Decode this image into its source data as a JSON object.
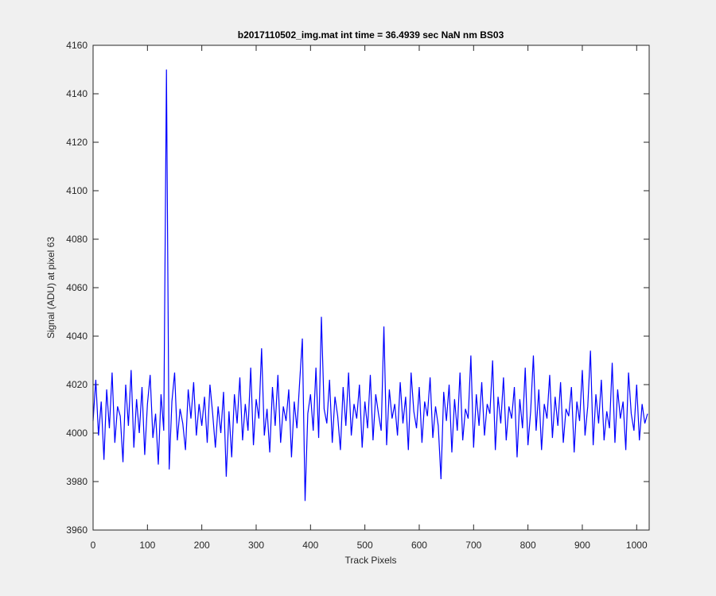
{
  "chart_data": {
    "type": "line",
    "title": "b2017110502_img.mat int time = 36.4939 sec  NaN nm BS03",
    "xlabel": "Track Pixels",
    "ylabel": "Signal (ADU) at pixel 63",
    "xlim": [
      0,
      1023
    ],
    "ylim": [
      3960,
      4160
    ],
    "xticks": [
      0,
      100,
      200,
      300,
      400,
      500,
      600,
      700,
      800,
      900,
      1000
    ],
    "yticks": [
      3960,
      3980,
      4000,
      4020,
      4040,
      4060,
      4080,
      4100,
      4120,
      4140,
      4160
    ],
    "series": [
      {
        "color": "#0000ff",
        "x": [
          0,
          5,
          10,
          15,
          20,
          25,
          30,
          35,
          40,
          45,
          50,
          55,
          60,
          65,
          70,
          75,
          80,
          85,
          90,
          95,
          100,
          105,
          110,
          115,
          120,
          125,
          130,
          135,
          140,
          145,
          150,
          155,
          160,
          165,
          170,
          175,
          180,
          185,
          190,
          195,
          200,
          205,
          210,
          215,
          220,
          225,
          230,
          235,
          240,
          245,
          250,
          255,
          260,
          265,
          270,
          275,
          280,
          285,
          290,
          295,
          300,
          305,
          310,
          315,
          320,
          325,
          330,
          335,
          340,
          345,
          350,
          355,
          360,
          365,
          370,
          375,
          380,
          385,
          390,
          395,
          400,
          405,
          410,
          415,
          420,
          425,
          430,
          435,
          440,
          445,
          450,
          455,
          460,
          465,
          470,
          475,
          480,
          485,
          490,
          495,
          500,
          505,
          510,
          515,
          520,
          525,
          530,
          535,
          540,
          545,
          550,
          555,
          560,
          565,
          570,
          575,
          580,
          585,
          590,
          595,
          600,
          605,
          610,
          615,
          620,
          625,
          630,
          635,
          640,
          645,
          650,
          655,
          660,
          665,
          670,
          675,
          680,
          685,
          690,
          695,
          700,
          705,
          710,
          715,
          720,
          725,
          730,
          735,
          740,
          745,
          750,
          755,
          760,
          765,
          770,
          775,
          780,
          785,
          790,
          795,
          800,
          805,
          810,
          815,
          820,
          825,
          830,
          835,
          840,
          845,
          850,
          855,
          860,
          865,
          870,
          875,
          880,
          885,
          890,
          895,
          900,
          905,
          910,
          915,
          920,
          925,
          930,
          935,
          940,
          945,
          950,
          955,
          960,
          965,
          970,
          975,
          980,
          985,
          990,
          995,
          1000,
          1005,
          1010,
          1015,
          1020
        ],
        "values": [
          4005,
          4022,
          3999,
          4013,
          3989,
          4018,
          4002,
          4025,
          3996,
          4011,
          4007,
          3988,
          4020,
          4003,
          4026,
          3994,
          4014,
          4000,
          4019,
          3991,
          4012,
          4024,
          3998,
          4008,
          3987,
          4016,
          4001,
          4150,
          3985,
          4013,
          4025,
          3997,
          4010,
          4004,
          3993,
          4018,
          4006,
          4021,
          3999,
          4012,
          4003,
          4015,
          3996,
          4020,
          4008,
          3994,
          4011,
          4000,
          4017,
          3982,
          4009,
          3990,
          4016,
          4004,
          4023,
          3997,
          4012,
          4001,
          4027,
          3995,
          4014,
          4006,
          4035,
          3999,
          4010,
          3992,
          4019,
          4003,
          4024,
          3996,
          4011,
          4005,
          4018,
          3990,
          4013,
          4002,
          4021,
          4039,
          3972,
          4008,
          4016,
          4001,
          4027,
          3998,
          4048,
          4010,
          4004,
          4022,
          3996,
          4015,
          4007,
          3993,
          4019,
          4003,
          4025,
          3999,
          4012,
          4006,
          4020,
          3994,
          4013,
          4002,
          4024,
          3997,
          4016,
          4008,
          4001,
          4044,
          3995,
          4018,
          4006,
          4012,
          3999,
          4021,
          4004,
          4015,
          3993,
          4025,
          4009,
          4002,
          4019,
          3996,
          4013,
          4007,
          4023,
          3998,
          4011,
          4003,
          3981,
          4017,
          4005,
          4020,
          3992,
          4014,
          4001,
          4025,
          3997,
          4010,
          4006,
          4032,
          3994,
          4016,
          4003,
          4021,
          3999,
          4012,
          4008,
          4030,
          3993,
          4015,
          4004,
          4023,
          3997,
          4011,
          4006,
          4019,
          3990,
          4014,
          4002,
          4027,
          3995,
          4009,
          4032,
          4001,
          4018,
          3993,
          4012,
          4006,
          4024,
          3998,
          4015,
          4003,
          4021,
          3996,
          4010,
          4007,
          4019,
          3992,
          4013,
          4005,
          4026,
          3999,
          4011,
          4034,
          3995,
          4016,
          4004,
          4022,
          3997,
          4009,
          4002,
          4029,
          3996,
          4018,
          4006,
          4013,
          3993,
          4025,
          4008,
          4001,
          4020,
          3997,
          4012,
          4004,
          4008
        ]
      }
    ]
  }
}
